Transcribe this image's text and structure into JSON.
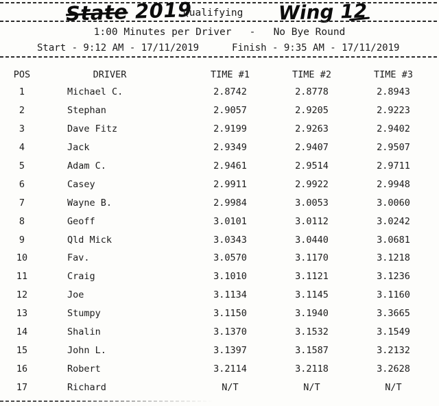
{
  "header": {
    "title_handwritten_word": "State",
    "title_handwritten_year": "2019",
    "title_typed": "Qualifying",
    "class_handwritten": "Wing 12",
    "session_info": "1:00 Minutes per Driver   -   No Bye Round",
    "start_info": "Start - 9:12 AM - 17/11/2019",
    "finish_info": "Finish - 9:35 AM - 17/11/2019"
  },
  "table": {
    "columns": [
      "POS",
      "DRIVER",
      "TIME #1",
      "TIME #2",
      "TIME #3"
    ],
    "rows": [
      {
        "pos": "1",
        "driver": "Michael C.",
        "t1": "2.8742",
        "t2": "2.8778",
        "t3": "2.8943"
      },
      {
        "pos": "2",
        "driver": "Stephan",
        "t1": "2.9057",
        "t2": "2.9205",
        "t3": "2.9223"
      },
      {
        "pos": "3",
        "driver": "Dave Fitz",
        "t1": "2.9199",
        "t2": "2.9263",
        "t3": "2.9402"
      },
      {
        "pos": "4",
        "driver": "Jack",
        "t1": "2.9349",
        "t2": "2.9407",
        "t3": "2.9507"
      },
      {
        "pos": "5",
        "driver": "Adam C.",
        "t1": "2.9461",
        "t2": "2.9514",
        "t3": "2.9711"
      },
      {
        "pos": "6",
        "driver": "Casey",
        "t1": "2.9911",
        "t2": "2.9922",
        "t3": "2.9948"
      },
      {
        "pos": "7",
        "driver": "Wayne B.",
        "t1": "2.9984",
        "t2": "3.0053",
        "t3": "3.0060"
      },
      {
        "pos": "8",
        "driver": "Geoff",
        "t1": "3.0101",
        "t2": "3.0112",
        "t3": "3.0242"
      },
      {
        "pos": "9",
        "driver": "Qld Mick",
        "t1": "3.0343",
        "t2": "3.0440",
        "t3": "3.0681"
      },
      {
        "pos": "10",
        "driver": "Fav.",
        "t1": "3.0570",
        "t2": "3.1170",
        "t3": "3.1218"
      },
      {
        "pos": "11",
        "driver": "Craig",
        "t1": "3.1010",
        "t2": "3.1121",
        "t3": "3.1236"
      },
      {
        "pos": "12",
        "driver": "Joe",
        "t1": "3.1134",
        "t2": "3.1145",
        "t3": "3.1160"
      },
      {
        "pos": "13",
        "driver": "Stumpy",
        "t1": "3.1150",
        "t2": "3.1940",
        "t3": "3.3665"
      },
      {
        "pos": "14",
        "driver": "Shalin",
        "t1": "3.1370",
        "t2": "3.1532",
        "t3": "3.1549"
      },
      {
        "pos": "15",
        "driver": "John L.",
        "t1": "3.1397",
        "t2": "3.1587",
        "t3": "3.2132"
      },
      {
        "pos": "16",
        "driver": "Robert",
        "t1": "3.2114",
        "t2": "3.2118",
        "t3": "3.2628"
      },
      {
        "pos": "17",
        "driver": "Richard",
        "t1": "N/T",
        "t2": "N/T",
        "t3": "N/T"
      }
    ]
  }
}
